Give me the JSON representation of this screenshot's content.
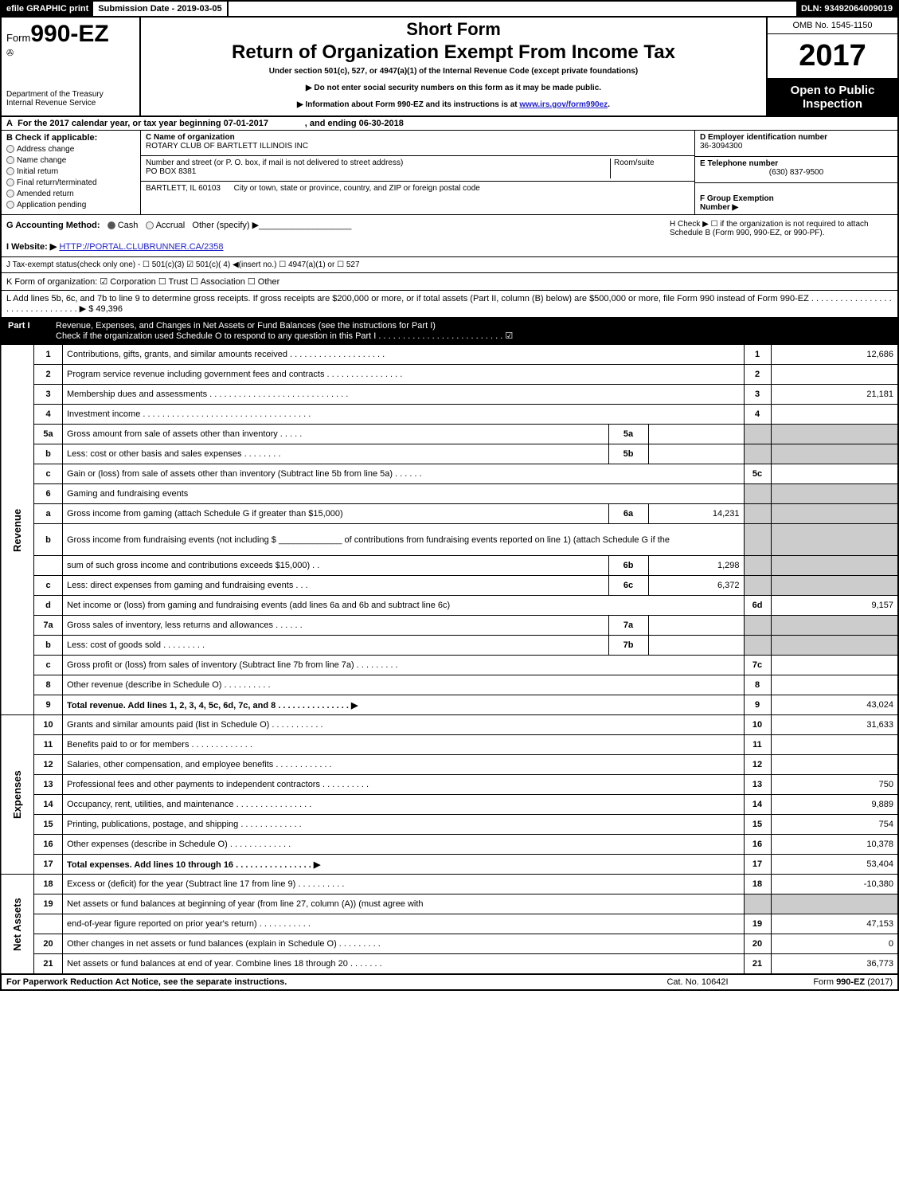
{
  "top": {
    "efile": "efile GRAPHIC print",
    "sub": "Submission Date - 2019-03-05",
    "dln": "DLN: 93492064009019"
  },
  "header": {
    "form_prefix": "Form",
    "form_no": "990-EZ",
    "dept": "Department of the Treasury\nInternal Revenue Service",
    "short": "Short Form",
    "title": "Return of Organization Exempt From Income Tax",
    "sub": "Under section 501(c), 527, or 4947(a)(1) of the Internal Revenue Code (except private foundations)",
    "sub2": "▶ Do not enter social security numbers on this form as it may be made public.",
    "sub3": "▶ Information about Form 990-EZ and its instructions is at ",
    "link": "www.irs.gov/form990ez",
    "omb": "OMB No. 1545-1150",
    "year": "2017",
    "open": "Open to Public\nInspection"
  },
  "rowA": {
    "a": "A",
    "txt": "For the 2017 calendar year, or tax year beginning 07-01-2017",
    "and": ", and ending 06-30-2018"
  },
  "boxB": {
    "label": "B  Check if applicable:",
    "items": [
      "Address change",
      "Name change",
      "Initial return",
      "Final return/terminated",
      "Amended return",
      "Application pending"
    ]
  },
  "boxC": {
    "c_label": "C Name of organization",
    "c_val": "ROTARY CLUB OF BARTLETT ILLINOIS INC",
    "street_label": "Number and street (or P. O. box, if mail is not delivered to street address)",
    "room": "Room/suite",
    "street_val": "PO BOX 8381",
    "city_val": "BARTLETT, IL  60103",
    "city_label": "City or town, state or province, country, and ZIP or foreign postal code"
  },
  "boxDE": {
    "d_label": "D Employer identification number",
    "d_val": "36-3094300",
    "e_label": "E Telephone number",
    "e_val": "(630) 837-9500",
    "f_label": "F Group Exemption\nNumber   ▶"
  },
  "g": {
    "label": "G Accounting Method:",
    "opts": [
      "Cash",
      "Accrual",
      "Other (specify) ▶"
    ],
    "h": "H   Check ▶  ☐  if the organization is not required to attach Schedule B (Form 990, 990-EZ, or 990-PF).",
    "i_label": "I Website: ▶",
    "i_val": "HTTP://PORTAL.CLUBRUNNER.CA/2358"
  },
  "j": "J Tax-exempt status(check only one) - ☐ 501(c)(3) ☑ 501(c)( 4) ◀(insert no.) ☐ 4947(a)(1) or ☐ 527",
  "k": "K Form of organization:  ☑ Corporation   ☐ Trust   ☐ Association   ☐ Other ",
  "l": {
    "txt": "L Add lines 5b, 6c, and 7b to line 9 to determine gross receipts. If gross receipts are $200,000 or more, or if total assets (Part II, column (B) below) are $500,000 or more, file Form 990 instead of Form 990-EZ  . . . . . . . . . . . . . . . . . . . . . . . . . . . . . . . .  ▶ $ 49,396"
  },
  "part1": {
    "n": "Part I",
    "t": "Revenue, Expenses, and Changes in Net Assets or Fund Balances (see the instructions for Part I)\nCheck if the organization used Schedule O to respond to any question in this Part I . . . . . . . . . . . . . . . . . . . . . . . . . .  ☑"
  },
  "rows": [
    {
      "side": "Revenue",
      "ln": "1",
      "d": "Contributions, gifts, grants, and similar amounts received . . . . . . . . . . . . . . . . . . . .",
      "n": "1",
      "a": "12,686"
    },
    {
      "ln": "2",
      "d": "Program service revenue including government fees and contracts . . . . . . . . . . . . . . . .",
      "n": "2",
      "a": ""
    },
    {
      "ln": "3",
      "d": "Membership dues and assessments . . . . . . . . . . . . . . . . . . . . . . . . . . . . .",
      "n": "3",
      "a": "21,181"
    },
    {
      "ln": "4",
      "d": "Investment income . . . . . . . . . . . . . . . . . . . . . . . . . . . . . . . . . . .",
      "n": "4",
      "a": ""
    },
    {
      "ln": "5a",
      "d": "Gross amount from sale of assets other than inventory  . . . . .",
      "m": "5a",
      "mv": "",
      "shade": true
    },
    {
      "ln": "b",
      "d": "Less: cost or other basis and sales expenses . . . . . . . .",
      "m": "5b",
      "mv": "",
      "shade": true
    },
    {
      "ln": "c",
      "d": "Gain or (loss) from sale of assets other than inventory (Subtract line 5b from line 5a)         .   .   .   .   .   .",
      "n": "5c",
      "a": ""
    },
    {
      "ln": "6",
      "d": "Gaming and fundraising events",
      "shade": true
    },
    {
      "ln": "a",
      "d": "Gross income from gaming (attach Schedule G if greater than $15,000)",
      "m": "6a",
      "mv": "14,231",
      "shade": true
    },
    {
      "ln": "b",
      "d": "Gross income from fundraising events (not including $ _____________ of contributions from fundraising events reported on line 1) (attach Schedule G if the",
      "shade": true,
      "tall": true
    },
    {
      "ln": "",
      "d": "sum of such gross income and contributions exceeds $15,000)        .   .",
      "m": "6b",
      "mv": "1,298",
      "shade": true
    },
    {
      "ln": "c",
      "d": "Less: direct expenses from gaming and fundraising events        .   .   .",
      "m": "6c",
      "mv": "6,372",
      "shade": true
    },
    {
      "ln": "d",
      "d": "Net income or (loss) from gaming and fundraising events (add lines 6a and 6b and subtract line 6c)",
      "n": "6d",
      "a": "9,157"
    },
    {
      "ln": "7a",
      "d": "Gross sales of inventory, less returns and allowances        .   .   .   .   .   .",
      "m": "7a",
      "mv": "",
      "shade": true
    },
    {
      "ln": "b",
      "d": "Less: cost of goods sold                      .   .   .   .   .   .   .   .   .",
      "m": "7b",
      "mv": "",
      "shade": true
    },
    {
      "ln": "c",
      "d": "Gross profit or (loss) from sales of inventory (Subtract line 7b from line 7a)         .   .   .   .   .   .   .   .   .",
      "n": "7c",
      "a": ""
    },
    {
      "ln": "8",
      "d": "Other revenue (describe in Schedule O)                     .   .   .   .   .   .   .   .   .   .",
      "n": "8",
      "a": ""
    },
    {
      "ln": "9",
      "d": "Total revenue. Add lines 1, 2, 3, 4, 5c, 6d, 7c, and 8       .   .   .   .   .   .   .   .   .   .   .   .   .   .   .   ▶",
      "n": "9",
      "a": "43,024",
      "bold": true
    },
    {
      "side": "Expenses",
      "ln": "10",
      "d": "Grants and similar amounts paid (list in Schedule O)             .   .   .   .   .   .   .   .   .   .   .",
      "n": "10",
      "a": "31,633"
    },
    {
      "ln": "11",
      "d": "Benefits paid to or for members                     .   .   .   .   .   .   .   .   .   .   .   .   .",
      "n": "11",
      "a": ""
    },
    {
      "ln": "12",
      "d": "Salaries, other compensation, and employee benefits         .   .   .   .   .   .   .   .   .   .   .   .",
      "n": "12",
      "a": ""
    },
    {
      "ln": "13",
      "d": "Professional fees and other payments to independent contractors       .   .   .   .   .   .   .   .   .   .",
      "n": "13",
      "a": "750"
    },
    {
      "ln": "14",
      "d": "Occupancy, rent, utilities, and maintenance       .   .   .   .   .   .   .   .   .   .   .   .   .   .   .   .",
      "n": "14",
      "a": "9,889"
    },
    {
      "ln": "15",
      "d": "Printing, publications, postage, and shipping             .   .   .   .   .   .   .   .   .   .   .   .   .",
      "n": "15",
      "a": "754"
    },
    {
      "ln": "16",
      "d": "Other expenses (describe in Schedule O)               .   .   .   .   .   .   .   .   .   .   .   .   .",
      "n": "16",
      "a": "10,378"
    },
    {
      "ln": "17",
      "d": "Total expenses. Add lines 10 through 16           .   .   .   .   .   .   .   .   .   .   .   .   .   .   .   .   ▶",
      "n": "17",
      "a": "53,404",
      "bold": true
    },
    {
      "side": "Net Assets",
      "ln": "18",
      "d": "Excess or (deficit) for the year (Subtract line 17 from line 9)           .   .   .   .   .   .   .   .   .   .",
      "n": "18",
      "a": "-10,380"
    },
    {
      "ln": "19",
      "d": "Net assets or fund balances at beginning of year (from line 27, column (A)) (must agree with",
      "shade": true
    },
    {
      "ln": "",
      "d": "end-of-year figure reported on prior year's return)             .   .   .   .   .   .   .   .   .   .   .",
      "n": "19",
      "a": "47,153"
    },
    {
      "ln": "20",
      "d": "Other changes in net assets or fund balances (explain in Schedule O)       .   .   .   .   .   .   .   .   .",
      "n": "20",
      "a": "0"
    },
    {
      "ln": "21",
      "d": "Net assets or fund balances at end of year. Combine lines 18 through 20         .   .   .   .   .   .   .",
      "n": "21",
      "a": "36,773"
    }
  ],
  "footer": {
    "f1": "For Paperwork Reduction Act Notice, see the separate instructions.",
    "f2": "Cat. No. 10642I",
    "f3": "Form 990-EZ (2017)"
  }
}
